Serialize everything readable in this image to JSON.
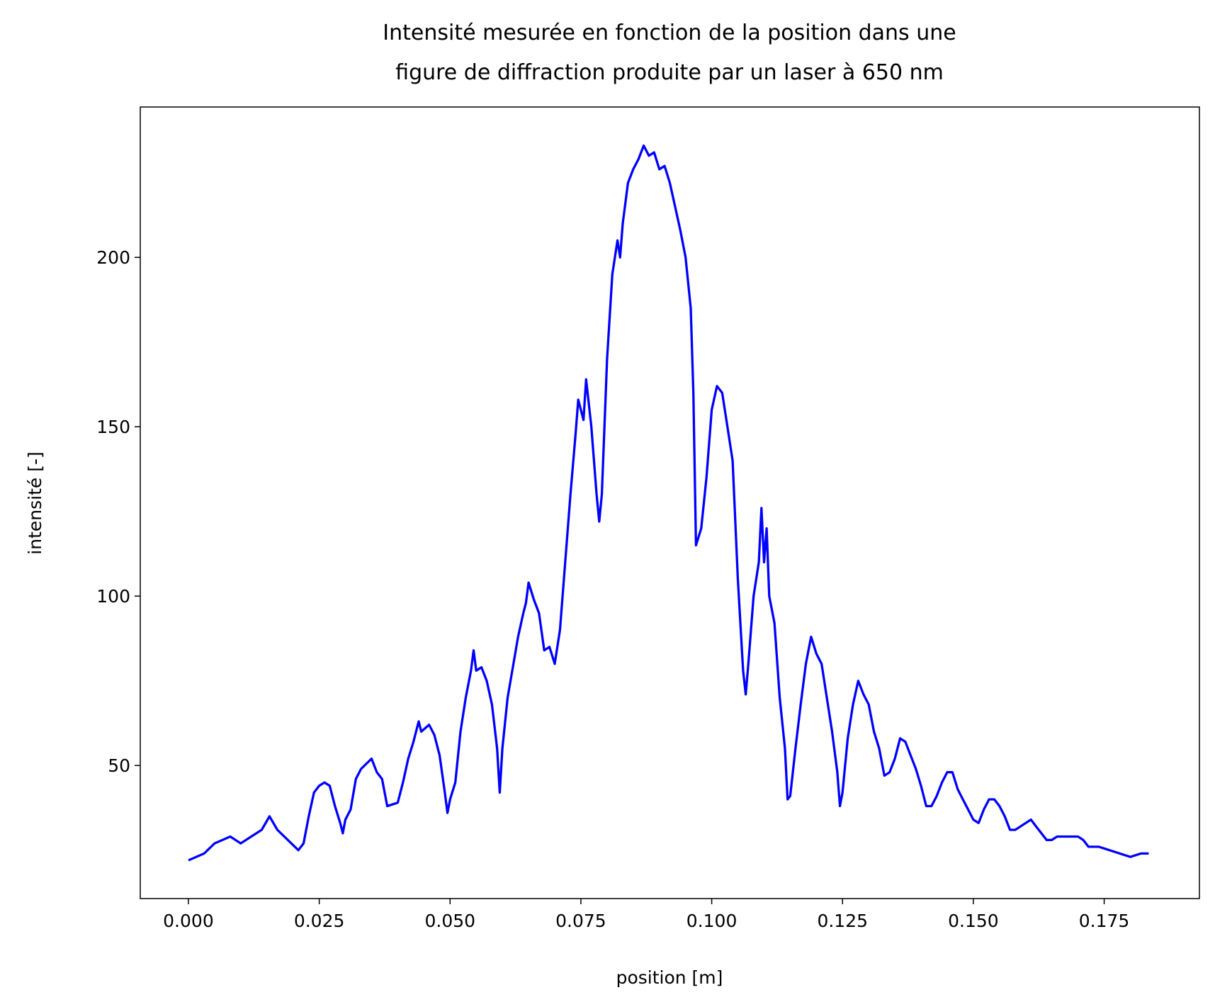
{
  "chart_data": {
    "type": "line",
    "title": [
      "Intensité mesurée en fonction de la position dans une",
      "figure de diffraction produite par un laser à 650 nm"
    ],
    "x_label": "position [m]",
    "y_label": "intensité [-]",
    "x": [
      0.0,
      0.003,
      0.005,
      0.008,
      0.01,
      0.012,
      0.014,
      0.0155,
      0.017,
      0.019,
      0.021,
      0.022,
      0.023,
      0.024,
      0.025,
      0.026,
      0.027,
      0.028,
      0.029,
      0.0295,
      0.03,
      0.031,
      0.032,
      0.033,
      0.035,
      0.036,
      0.037,
      0.038,
      0.04,
      0.041,
      0.042,
      0.043,
      0.044,
      0.0445,
      0.046,
      0.047,
      0.048,
      0.049,
      0.0495,
      0.05,
      0.051,
      0.052,
      0.053,
      0.054,
      0.0545,
      0.055,
      0.056,
      0.057,
      0.058,
      0.059,
      0.0595,
      0.06,
      0.061,
      0.062,
      0.063,
      0.064,
      0.0645,
      0.065,
      0.066,
      0.067,
      0.068,
      0.069,
      0.07,
      0.071,
      0.072,
      0.073,
      0.074,
      0.0745,
      0.0755,
      0.076,
      0.077,
      0.078,
      0.0785,
      0.079,
      0.08,
      0.081,
      0.082,
      0.0825,
      0.083,
      0.084,
      0.085,
      0.086,
      0.087,
      0.088,
      0.089,
      0.09,
      0.091,
      0.092,
      0.093,
      0.094,
      0.095,
      0.096,
      0.0965,
      0.097,
      0.098,
      0.099,
      0.1,
      0.101,
      0.102,
      0.103,
      0.104,
      0.105,
      0.106,
      0.1065,
      0.107,
      0.108,
      0.109,
      0.1095,
      0.11,
      0.1105,
      0.111,
      0.112,
      0.113,
      0.114,
      0.1145,
      0.115,
      0.116,
      0.117,
      0.118,
      0.119,
      0.12,
      0.121,
      0.122,
      0.123,
      0.124,
      0.1245,
      0.125,
      0.126,
      0.127,
      0.128,
      0.129,
      0.13,
      0.131,
      0.132,
      0.133,
      0.134,
      0.135,
      0.136,
      0.137,
      0.138,
      0.139,
      0.14,
      0.141,
      0.142,
      0.143,
      0.144,
      0.145,
      0.146,
      0.147,
      0.148,
      0.149,
      0.15,
      0.151,
      0.152,
      0.153,
      0.154,
      0.155,
      0.156,
      0.157,
      0.158,
      0.159,
      0.16,
      0.161,
      0.162,
      0.163,
      0.164,
      0.165,
      0.166,
      0.168,
      0.17,
      0.171,
      0.172,
      0.174,
      0.176,
      0.178,
      0.18,
      0.182,
      0.1835
    ],
    "series": [
      {
        "color": "#0000ff",
        "values": [
          22,
          24,
          27,
          29,
          27,
          29,
          31,
          35,
          31,
          28,
          25,
          27,
          35,
          42,
          44,
          45,
          44,
          38,
          33,
          30,
          34,
          37,
          46,
          49,
          52,
          48,
          46,
          38,
          39,
          45,
          52,
          57,
          63,
          60,
          62,
          59,
          53,
          42,
          36,
          40,
          45,
          60,
          70,
          78,
          84,
          78,
          79,
          75,
          68,
          55,
          42,
          55,
          70,
          79,
          88,
          95,
          98,
          104,
          99,
          95,
          84,
          85,
          80,
          90,
          110,
          130,
          148,
          158,
          152,
          164,
          150,
          130,
          122,
          130,
          170,
          195,
          205,
          200,
          210,
          222,
          226,
          229,
          233,
          230,
          231,
          226,
          227,
          222,
          215,
          208,
          200,
          185,
          160,
          115,
          120,
          135,
          155,
          162,
          160,
          150,
          140,
          105,
          78,
          71,
          80,
          100,
          110,
          126,
          110,
          120,
          100,
          92,
          70,
          55,
          40,
          41,
          55,
          68,
          80,
          88,
          83,
          80,
          70,
          60,
          48,
          38,
          42,
          58,
          68,
          75,
          71,
          68,
          60,
          55,
          47,
          48,
          52,
          58,
          57,
          53,
          49,
          44,
          38,
          38,
          41,
          45,
          48,
          48,
          43,
          40,
          37,
          34,
          33,
          37,
          40,
          40,
          38,
          35,
          31,
          31,
          32,
          33,
          34,
          32,
          30,
          28,
          28,
          29,
          29,
          29,
          28,
          26,
          26,
          25,
          24,
          23,
          24,
          24
        ]
      }
    ],
    "xlim": [
      -0.0092,
      0.1932
    ],
    "ylim": [
      10.7,
      244.4
    ],
    "xticks": [
      {
        "value": 0,
        "label": "0.000"
      },
      {
        "value": 0.025,
        "label": "0.025"
      },
      {
        "value": 0.05,
        "label": "0.050"
      },
      {
        "value": 0.075,
        "label": "0.075"
      },
      {
        "value": 0.1,
        "label": "0.100"
      },
      {
        "value": 0.125,
        "label": "0.125"
      },
      {
        "value": 0.15,
        "label": "0.150"
      },
      {
        "value": 0.175,
        "label": "0.175"
      }
    ],
    "yticks": [
      50,
      100,
      150,
      200
    ],
    "grid": false
  }
}
